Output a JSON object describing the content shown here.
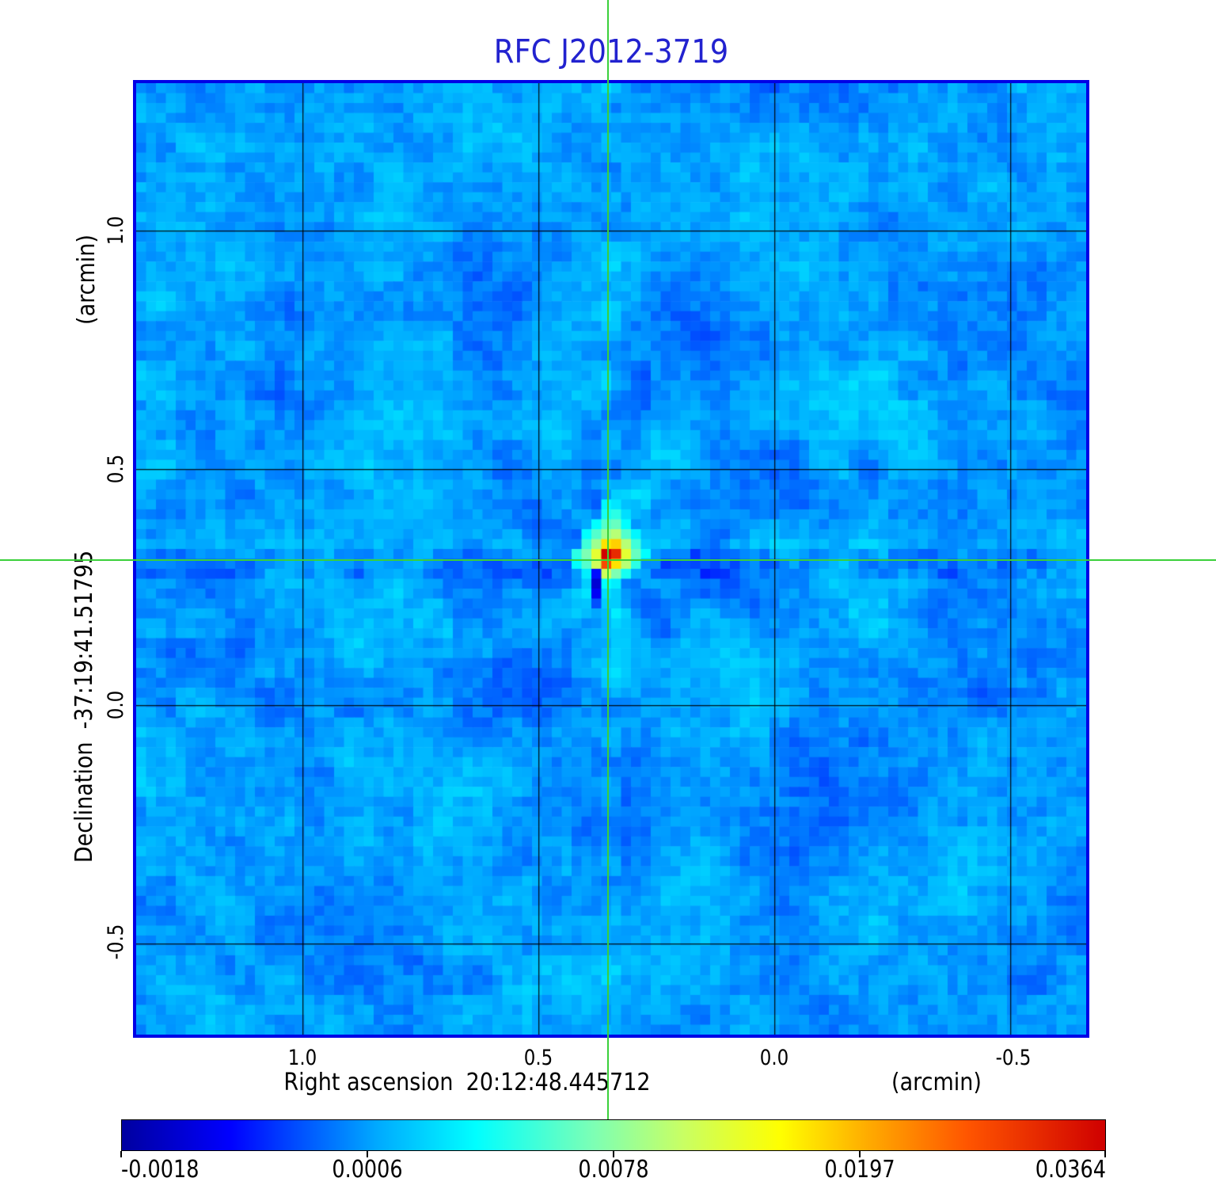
{
  "title": {
    "text": "RFC J2012-3719",
    "color": "#2222cf"
  },
  "axes": {
    "x": {
      "title": "Right ascension",
      "value": "20:12:48.445712",
      "unit": "(arcmin)",
      "ticks": [
        "1.0",
        "0.5",
        "0.0",
        "-0.5"
      ]
    },
    "y": {
      "title": "Declination",
      "value": "-37:19:41.51795",
      "unit": "(arcmin)",
      "ticks": [
        "1.0",
        "0.5",
        "0.0",
        "-0.5"
      ]
    }
  },
  "colorbar": {
    "labels": [
      "-0.0018",
      "0.0006",
      "0.0078",
      "0.0197",
      "0.0364"
    ]
  },
  "crosshair": {
    "color": "#3ad03a"
  },
  "frame_color": "#0000e6",
  "chart_data": {
    "type": "heatmap",
    "title": "RFC J2012-3719",
    "xlabel": "Right ascension 20:12:48.445712 (arcmin)",
    "ylabel": "Declination -37:19:41.51795 (arcmin)",
    "x_tick_values_arcmin": [
      1.0,
      0.5,
      0.0,
      -0.5
    ],
    "y_tick_values_arcmin": [
      1.0,
      0.5,
      0.0,
      -0.5
    ],
    "x_range_arcmin": [
      1.35,
      -0.66
    ],
    "y_range_arcmin": [
      1.31,
      -0.69
    ],
    "grid": true,
    "legend_position": "colorbar-bottom",
    "colorbar_tick_values": [
      -0.0018,
      0.0006,
      0.0078,
      0.0197,
      0.0364
    ],
    "min_intensity": -0.0018,
    "peak_intensity": 0.0364,
    "source": {
      "ra": "20:12:48.445712",
      "dec": "-37:19:41.51795",
      "x_offset_arcmin": 0.35,
      "y_offset_arcmin": 0.31
    },
    "colormap_stops": [
      [
        0.0,
        "#0000a0"
      ],
      [
        0.11,
        "#0000ff"
      ],
      [
        0.26,
        "#00aaff"
      ],
      [
        0.36,
        "#00ffff"
      ],
      [
        0.48,
        "#7dffb4"
      ],
      [
        0.57,
        "#c8ff64"
      ],
      [
        0.67,
        "#ffff00"
      ],
      [
        0.76,
        "#ffaa00"
      ],
      [
        0.86,
        "#ff5500"
      ],
      [
        1.0,
        "#cf0000"
      ]
    ],
    "grid_fractions": {
      "x": [
        0.175,
        0.4233,
        0.6717,
        0.92
      ],
      "y": [
        0.1549,
        0.4055,
        0.6536,
        0.9042
      ]
    },
    "crosshair_fractions": {
      "x": 0.4967,
      "y": 0.5012
    },
    "render": {
      "cols": 96,
      "rows": 96,
      "seed": 11,
      "background_level": 0.25,
      "noise_amp": 0.1,
      "patch_amp": 0.05,
      "source_center_cell": [
        47.8,
        47.6
      ],
      "stamp": [
        [
          47,
          42,
          0.35
        ],
        [
          48,
          42,
          0.33
        ],
        [
          47,
          43,
          0.38
        ],
        [
          48,
          43,
          0.4
        ],
        [
          46,
          44,
          0.36
        ],
        [
          47,
          44,
          0.44
        ],
        [
          48,
          44,
          0.46
        ],
        [
          49,
          44,
          0.36
        ],
        [
          45,
          45,
          0.36
        ],
        [
          46,
          45,
          0.44
        ],
        [
          47,
          45,
          0.52
        ],
        [
          48,
          45,
          0.55
        ],
        [
          49,
          45,
          0.44
        ],
        [
          50,
          45,
          0.35
        ],
        [
          45,
          46,
          0.42
        ],
        [
          46,
          46,
          0.52
        ],
        [
          47,
          46,
          0.7
        ],
        [
          48,
          46,
          0.72
        ],
        [
          49,
          46,
          0.55
        ],
        [
          50,
          46,
          0.42
        ],
        [
          44,
          47,
          0.4
        ],
        [
          45,
          47,
          0.48
        ],
        [
          46,
          47,
          0.62
        ],
        [
          47,
          47,
          1.0
        ],
        [
          48,
          47,
          0.93
        ],
        [
          49,
          47,
          0.62
        ],
        [
          50,
          47,
          0.46
        ],
        [
          51,
          47,
          0.36
        ],
        [
          44,
          48,
          0.36
        ],
        [
          45,
          48,
          0.44
        ],
        [
          46,
          48,
          0.58
        ],
        [
          47,
          48,
          0.88
        ],
        [
          48,
          48,
          0.7
        ],
        [
          49,
          48,
          0.55
        ],
        [
          50,
          48,
          0.4
        ],
        [
          45,
          49,
          0.34
        ],
        [
          46,
          49,
          0.12
        ],
        [
          47,
          49,
          0.58
        ],
        [
          48,
          49,
          0.48
        ],
        [
          49,
          49,
          0.38
        ],
        [
          46,
          50,
          0.06
        ],
        [
          47,
          50,
          0.36
        ],
        [
          48,
          50,
          0.34
        ],
        [
          46,
          51,
          0.1
        ],
        [
          47,
          51,
          0.32
        ],
        [
          46,
          52,
          0.18
        ],
        [
          47,
          52,
          0.3
        ],
        [
          48,
          52,
          0.3
        ],
        [
          47,
          53,
          0.28
        ]
      ]
    }
  }
}
